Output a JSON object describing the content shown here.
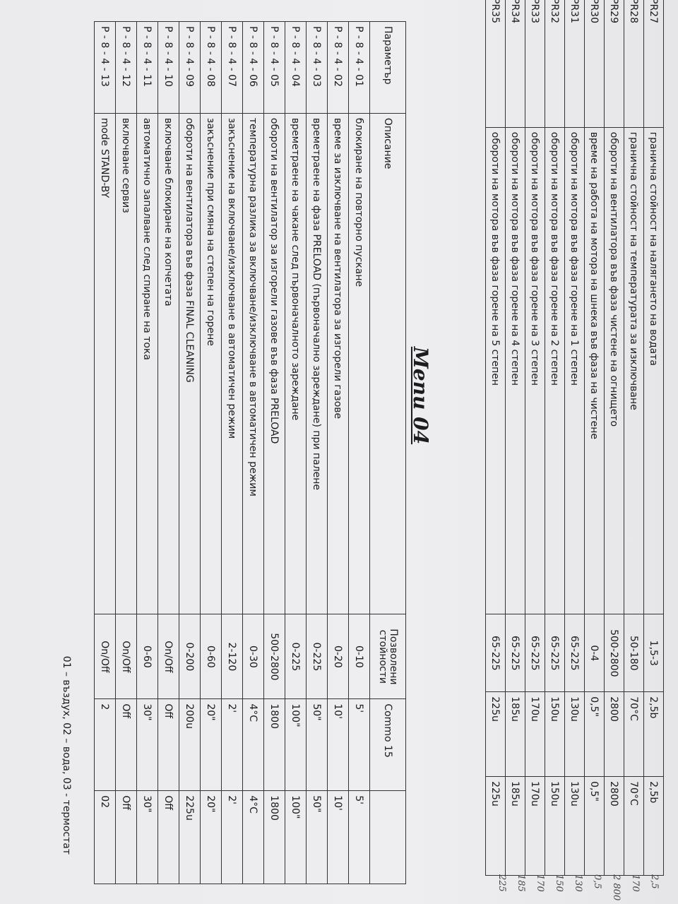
{
  "upper_table": {
    "rows": [
      [
        "PR27",
        "гранична стойност на налягането на водата",
        "1,5-3",
        "2,5b",
        "2,5b"
      ],
      [
        "PR28",
        "гранична стойност на температурата за  изключване",
        "50-180",
        "70°C",
        "70°C"
      ],
      [
        "PR29",
        "обороти на вентилатора във фаза чистене на огнището",
        "500-2800",
        "2800",
        "2800"
      ],
      [
        "PR30",
        "време на работа на мотора на шнека във фаза на чистене",
        "0-4",
        "0,5\"",
        "0,5\""
      ],
      [
        "PR31",
        "обороти на мотора във фаза горене на 1 степен",
        "65-225",
        "130u",
        "130u"
      ],
      [
        "PR32",
        "обороти на мотора във фаза горене на 2 степен",
        "65-225",
        "150u",
        "150u"
      ],
      [
        "PR33",
        "обороти на мотора във фаза горене на 3 степен",
        "65-225",
        "170u",
        "170u"
      ],
      [
        "PR34",
        "обороти на мотора във фаза горене на 4 степен",
        "65-225",
        "185u",
        "185u"
      ],
      [
        "PR35",
        "обороти на мотора във фаза горене на 5 степен",
        "65-225",
        "225u",
        "225u"
      ]
    ]
  },
  "handwritten_notes": [
    "2,5",
    "170",
    "2 800",
    "0,5",
    "130",
    "150",
    "170",
    "185",
    "225"
  ],
  "title": "Menu 04",
  "lower_table": {
    "headers": [
      "Параметър",
      "Описание",
      "Позволени стойности",
      "Commo 15",
      ""
    ],
    "rows": [
      [
        "P - 8 - 4 - 01",
        "блокиране на повторно пускане",
        "0-10",
        "5'",
        "5'"
      ],
      [
        "P - 8 - 4 - 02",
        "време за изключване на вентилатора за изгорели газове",
        "0-20",
        "10'",
        "10'"
      ],
      [
        "P - 8 - 4 - 03",
        "времетраене на фаза PRELOAD (първоначално зареждане) при палене",
        "0-225",
        "50\"",
        "50\""
      ],
      [
        "P - 8 - 4 - 04",
        "времетраене на чакане след първоначалното зареждане",
        "0-225",
        "100\"",
        "100\""
      ],
      [
        "P - 8 - 4 - 05",
        "обороти на вентилатор за изгорели газове във фаза PRELOAD",
        "500-2800",
        "1800",
        "1800"
      ],
      [
        "P - 8 - 4 - 06",
        "температурна разлика за включване/изключване в автоматичен режим",
        "0-30",
        "4°C",
        "4°C"
      ],
      [
        "P - 8 - 4 - 07",
        "закъснение на включване/изключване в автоматичен режим",
        "2-120",
        "2'",
        "2'"
      ],
      [
        "P - 8 - 4 - 08",
        "закъснение при смяна на степен на горене",
        "0-60",
        "20\"",
        "20\""
      ],
      [
        "P - 8 - 4 - 09",
        "обороти на вентилатора във фаза FINAL CLEANING",
        "0-200",
        "200u",
        "225u"
      ],
      [
        "P - 8 - 4 - 10",
        "включване блокиране на копчетата",
        "On/Off",
        "Off",
        "Off"
      ],
      [
        "P - 8 - 4 - 11",
        "автоматично запалване след спиране на тока",
        "0-60",
        "30\"",
        "30\""
      ],
      [
        "P - 8 - 4 - 12",
        "включване сервиз",
        "On/Off",
        "Off",
        "Off"
      ],
      [
        "P - 8 - 4 - 13",
        "mode STAND-BY",
        "On/Off",
        "2",
        "02"
      ]
    ]
  },
  "footer": "01 – въздух,     02 – вода,     03 - термостат"
}
